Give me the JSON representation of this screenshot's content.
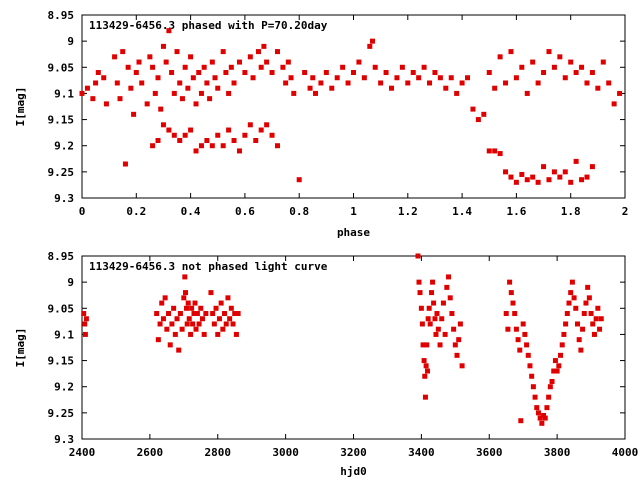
{
  "chart_data": [
    {
      "type": "scatter",
      "title": "113429-6456.3 phased with P=70.20day",
      "xlabel": "phase",
      "ylabel": "I[mag]",
      "xlim": [
        0,
        2
      ],
      "ylim": [
        9.3,
        8.95
      ],
      "y_inverted": true,
      "grid": false,
      "color": "#e00000",
      "x_ticks": [
        "0",
        "0.2",
        "0.4",
        "0.6",
        "0.8",
        "1",
        "1.2",
        "1.4",
        "1.6",
        "1.8",
        "2"
      ],
      "y_ticks": [
        "8.95",
        "9",
        "9.05",
        "9.1",
        "9.15",
        "9.2",
        "9.25",
        "9.3"
      ],
      "points": [
        [
          0.0,
          9.1
        ],
        [
          0.02,
          9.09
        ],
        [
          0.04,
          9.11
        ],
        [
          0.05,
          9.08
        ],
        [
          0.06,
          9.06
        ],
        [
          0.08,
          9.07
        ],
        [
          0.09,
          9.12
        ],
        [
          0.12,
          9.03
        ],
        [
          0.13,
          9.08
        ],
        [
          0.14,
          9.11
        ],
        [
          0.15,
          9.02
        ],
        [
          0.16,
          9.235
        ],
        [
          0.17,
          9.05
        ],
        [
          0.18,
          9.09
        ],
        [
          0.19,
          9.14
        ],
        [
          0.2,
          9.06
        ],
        [
          0.21,
          9.04
        ],
        [
          0.22,
          9.08
        ],
        [
          0.24,
          9.12
        ],
        [
          0.25,
          9.03
        ],
        [
          0.26,
          9.05
        ],
        [
          0.27,
          9.1
        ],
        [
          0.28,
          9.07
        ],
        [
          0.29,
          9.13
        ],
        [
          0.3,
          9.01
        ],
        [
          0.31,
          9.04
        ],
        [
          0.32,
          8.98
        ],
        [
          0.33,
          9.06
        ],
        [
          0.34,
          9.1
        ],
        [
          0.35,
          9.02
        ],
        [
          0.36,
          9.08
        ],
        [
          0.37,
          9.11
        ],
        [
          0.38,
          9.05
        ],
        [
          0.39,
          9.09
        ],
        [
          0.4,
          9.03
        ],
        [
          0.41,
          9.07
        ],
        [
          0.42,
          9.12
        ],
        [
          0.43,
          9.06
        ],
        [
          0.44,
          9.1
        ],
        [
          0.45,
          9.05
        ],
        [
          0.46,
          9.08
        ],
        [
          0.47,
          9.11
        ],
        [
          0.48,
          9.04
        ],
        [
          0.49,
          9.07
        ],
        [
          0.5,
          9.09
        ],
        [
          0.52,
          9.02
        ],
        [
          0.53,
          9.06
        ],
        [
          0.54,
          9.1
        ],
        [
          0.55,
          9.05
        ],
        [
          0.56,
          9.08
        ],
        [
          0.58,
          9.04
        ],
        [
          0.6,
          9.06
        ],
        [
          0.62,
          9.03
        ],
        [
          0.63,
          9.07
        ],
        [
          0.65,
          9.02
        ],
        [
          0.66,
          9.05
        ],
        [
          0.67,
          9.01
        ],
        [
          0.68,
          9.04
        ],
        [
          0.7,
          9.06
        ],
        [
          0.72,
          9.02
        ],
        [
          0.74,
          9.05
        ],
        [
          0.75,
          9.08
        ],
        [
          0.76,
          9.04
        ],
        [
          0.77,
          9.07
        ],
        [
          0.78,
          9.1
        ],
        [
          0.8,
          9.265
        ],
        [
          0.82,
          9.06
        ],
        [
          0.84,
          9.09
        ],
        [
          0.85,
          9.07
        ],
        [
          0.86,
          9.1
        ],
        [
          0.88,
          9.08
        ],
        [
          0.9,
          9.06
        ],
        [
          0.92,
          9.09
        ],
        [
          0.94,
          9.07
        ],
        [
          0.96,
          9.05
        ],
        [
          0.98,
          9.08
        ],
        [
          1.0,
          9.06
        ],
        [
          1.02,
          9.04
        ],
        [
          1.04,
          9.07
        ],
        [
          1.06,
          9.01
        ],
        [
          1.07,
          9.0
        ],
        [
          1.08,
          9.05
        ],
        [
          1.1,
          9.08
        ],
        [
          1.12,
          9.06
        ],
        [
          1.14,
          9.09
        ],
        [
          1.16,
          9.07
        ],
        [
          1.18,
          9.05
        ],
        [
          1.2,
          9.08
        ],
        [
          1.22,
          9.06
        ],
        [
          1.24,
          9.07
        ],
        [
          1.26,
          9.05
        ],
        [
          1.28,
          9.08
        ],
        [
          1.3,
          9.06
        ],
        [
          1.32,
          9.07
        ],
        [
          1.34,
          9.09
        ],
        [
          1.36,
          9.07
        ],
        [
          1.38,
          9.1
        ],
        [
          1.4,
          9.08
        ],
        [
          1.42,
          9.07
        ],
        [
          1.44,
          9.13
        ],
        [
          1.46,
          9.15
        ],
        [
          1.48,
          9.14
        ],
        [
          1.5,
          9.21
        ],
        [
          1.52,
          9.21
        ],
        [
          1.54,
          9.215
        ],
        [
          1.56,
          9.25
        ],
        [
          1.58,
          9.26
        ],
        [
          1.6,
          9.27
        ],
        [
          1.62,
          9.255
        ],
        [
          1.64,
          9.265
        ],
        [
          1.66,
          9.26
        ],
        [
          1.68,
          9.27
        ],
        [
          1.7,
          9.24
        ],
        [
          1.72,
          9.265
        ],
        [
          1.74,
          9.25
        ],
        [
          1.76,
          9.26
        ],
        [
          1.78,
          9.25
        ],
        [
          1.8,
          9.27
        ],
        [
          1.82,
          9.23
        ],
        [
          1.84,
          9.265
        ],
        [
          1.86,
          9.26
        ],
        [
          1.88,
          9.24
        ],
        [
          1.5,
          9.06
        ],
        [
          1.52,
          9.09
        ],
        [
          1.54,
          9.03
        ],
        [
          1.56,
          9.08
        ],
        [
          1.58,
          9.02
        ],
        [
          1.6,
          9.07
        ],
        [
          1.62,
          9.05
        ],
        [
          1.64,
          9.1
        ],
        [
          1.66,
          9.04
        ],
        [
          1.68,
          9.08
        ],
        [
          1.7,
          9.06
        ],
        [
          1.72,
          9.02
        ],
        [
          1.74,
          9.05
        ],
        [
          1.76,
          9.03
        ],
        [
          1.78,
          9.07
        ],
        [
          1.8,
          9.04
        ],
        [
          1.82,
          9.06
        ],
        [
          1.84,
          9.05
        ],
        [
          1.86,
          9.08
        ],
        [
          1.88,
          9.06
        ],
        [
          1.9,
          9.09
        ],
        [
          1.92,
          9.04
        ],
        [
          1.94,
          9.08
        ],
        [
          1.96,
          9.12
        ],
        [
          1.98,
          9.1
        ],
        [
          0.34,
          9.18
        ],
        [
          0.36,
          9.19
        ],
        [
          0.38,
          9.18
        ],
        [
          0.4,
          9.17
        ],
        [
          0.42,
          9.21
        ],
        [
          0.44,
          9.2
        ],
        [
          0.46,
          9.19
        ],
        [
          0.48,
          9.2
        ],
        [
          0.5,
          9.18
        ],
        [
          0.52,
          9.2
        ],
        [
          0.54,
          9.17
        ],
        [
          0.56,
          9.19
        ],
        [
          0.58,
          9.21
        ],
        [
          0.6,
          9.18
        ],
        [
          0.62,
          9.16
        ],
        [
          0.64,
          9.19
        ],
        [
          0.66,
          9.17
        ],
        [
          0.68,
          9.16
        ],
        [
          0.7,
          9.18
        ],
        [
          0.72,
          9.2
        ],
        [
          0.26,
          9.2
        ],
        [
          0.28,
          9.19
        ],
        [
          0.3,
          9.16
        ],
        [
          0.32,
          9.17
        ]
      ]
    },
    {
      "type": "scatter",
      "title": "113429-6456.3 not phased light curve",
      "xlabel": "hjd0",
      "ylabel": "I[mag]",
      "xlim": [
        2400,
        4000
      ],
      "ylim": [
        9.3,
        8.95
      ],
      "y_inverted": true,
      "grid": false,
      "color": "#e00000",
      "x_ticks": [
        "2400",
        "2600",
        "2800",
        "3000",
        "3200",
        "3400",
        "3600",
        "3800",
        "4000"
      ],
      "y_ticks": [
        "8.95",
        "9",
        "9.05",
        "9.1",
        "9.15",
        "9.2",
        "9.25",
        "9.3"
      ],
      "points": [
        [
          2405,
          9.06
        ],
        [
          2408,
          9.08
        ],
        [
          2410,
          9.1
        ],
        [
          2413,
          9.07
        ],
        [
          2620,
          9.06
        ],
        [
          2625,
          9.11
        ],
        [
          2630,
          9.08
        ],
        [
          2635,
          9.04
        ],
        [
          2640,
          9.07
        ],
        [
          2645,
          9.03
        ],
        [
          2650,
          9.09
        ],
        [
          2655,
          9.06
        ],
        [
          2660,
          9.12
        ],
        [
          2665,
          9.08
        ],
        [
          2670,
          9.05
        ],
        [
          2675,
          9.1
        ],
        [
          2680,
          9.07
        ],
        [
          2685,
          9.13
        ],
        [
          2690,
          9.06
        ],
        [
          2695,
          9.09
        ],
        [
          2700,
          9.03
        ],
        [
          2703,
          8.99
        ],
        [
          2705,
          9.02
        ],
        [
          2708,
          9.05
        ],
        [
          2710,
          9.08
        ],
        [
          2713,
          9.04
        ],
        [
          2716,
          9.07
        ],
        [
          2720,
          9.1
        ],
        [
          2723,
          9.05
        ],
        [
          2726,
          9.08
        ],
        [
          2730,
          9.06
        ],
        [
          2733,
          9.04
        ],
        [
          2736,
          9.09
        ],
        [
          2740,
          9.06
        ],
        [
          2745,
          9.08
        ],
        [
          2750,
          9.05
        ],
        [
          2755,
          9.07
        ],
        [
          2760,
          9.1
        ],
        [
          2765,
          9.06
        ],
        [
          2780,
          9.02
        ],
        [
          2785,
          9.06
        ],
        [
          2790,
          9.08
        ],
        [
          2795,
          9.05
        ],
        [
          2800,
          9.1
        ],
        [
          2805,
          9.07
        ],
        [
          2810,
          9.04
        ],
        [
          2815,
          9.09
        ],
        [
          2820,
          9.06
        ],
        [
          2825,
          9.08
        ],
        [
          2830,
          9.03
        ],
        [
          2835,
          9.07
        ],
        [
          2840,
          9.05
        ],
        [
          2845,
          9.08
        ],
        [
          2850,
          9.06
        ],
        [
          2855,
          9.1
        ],
        [
          2860,
          9.06
        ],
        [
          3390,
          8.95
        ],
        [
          3393,
          9.0
        ],
        [
          3396,
          9.02
        ],
        [
          3400,
          9.05
        ],
        [
          3403,
          9.08
        ],
        [
          3405,
          9.12
        ],
        [
          3408,
          9.15
        ],
        [
          3410,
          9.18
        ],
        [
          3412,
          9.22
        ],
        [
          3414,
          9.16
        ],
        [
          3416,
          9.12
        ],
        [
          3418,
          9.17
        ],
        [
          3420,
          9.07
        ],
        [
          3423,
          9.05
        ],
        [
          3426,
          9.08
        ],
        [
          3430,
          9.02
        ],
        [
          3433,
          9.0
        ],
        [
          3436,
          9.04
        ],
        [
          3440,
          9.07
        ],
        [
          3443,
          9.1
        ],
        [
          3446,
          9.06
        ],
        [
          3450,
          9.09
        ],
        [
          3455,
          9.12
        ],
        [
          3460,
          9.07
        ],
        [
          3465,
          9.04
        ],
        [
          3470,
          9.1
        ],
        [
          3475,
          9.01
        ],
        [
          3480,
          8.99
        ],
        [
          3485,
          9.03
        ],
        [
          3490,
          9.06
        ],
        [
          3495,
          9.09
        ],
        [
          3500,
          9.12
        ],
        [
          3505,
          9.14
        ],
        [
          3510,
          9.11
        ],
        [
          3515,
          9.08
        ],
        [
          3520,
          9.16
        ],
        [
          3650,
          9.06
        ],
        [
          3655,
          9.09
        ],
        [
          3660,
          9.0
        ],
        [
          3665,
          9.02
        ],
        [
          3670,
          9.04
        ],
        [
          3675,
          9.06
        ],
        [
          3680,
          9.09
        ],
        [
          3685,
          9.11
        ],
        [
          3690,
          9.13
        ],
        [
          3693,
          9.265
        ],
        [
          3700,
          9.08
        ],
        [
          3705,
          9.1
        ],
        [
          3710,
          9.12
        ],
        [
          3715,
          9.14
        ],
        [
          3720,
          9.16
        ],
        [
          3725,
          9.18
        ],
        [
          3730,
          9.2
        ],
        [
          3735,
          9.22
        ],
        [
          3740,
          9.24
        ],
        [
          3745,
          9.25
        ],
        [
          3750,
          9.26
        ],
        [
          3755,
          9.27
        ],
        [
          3760,
          9.255
        ],
        [
          3765,
          9.26
        ],
        [
          3770,
          9.24
        ],
        [
          3775,
          9.22
        ],
        [
          3780,
          9.2
        ],
        [
          3785,
          9.19
        ],
        [
          3790,
          9.17
        ],
        [
          3795,
          9.15
        ],
        [
          3800,
          9.17
        ],
        [
          3805,
          9.16
        ],
        [
          3810,
          9.14
        ],
        [
          3815,
          9.12
        ],
        [
          3820,
          9.1
        ],
        [
          3825,
          9.08
        ],
        [
          3830,
          9.06
        ],
        [
          3835,
          9.04
        ],
        [
          3840,
          9.02
        ],
        [
          3845,
          9.0
        ],
        [
          3850,
          9.03
        ],
        [
          3855,
          9.05
        ],
        [
          3860,
          9.08
        ],
        [
          3865,
          9.11
        ],
        [
          3870,
          9.13
        ],
        [
          3875,
          9.09
        ],
        [
          3880,
          9.06
        ],
        [
          3885,
          9.04
        ],
        [
          3890,
          9.01
        ],
        [
          3895,
          9.03
        ],
        [
          3900,
          9.06
        ],
        [
          3905,
          9.08
        ],
        [
          3910,
          9.1
        ],
        [
          3915,
          9.07
        ],
        [
          3920,
          9.05
        ],
        [
          3925,
          9.09
        ],
        [
          3930,
          9.07
        ]
      ]
    }
  ]
}
